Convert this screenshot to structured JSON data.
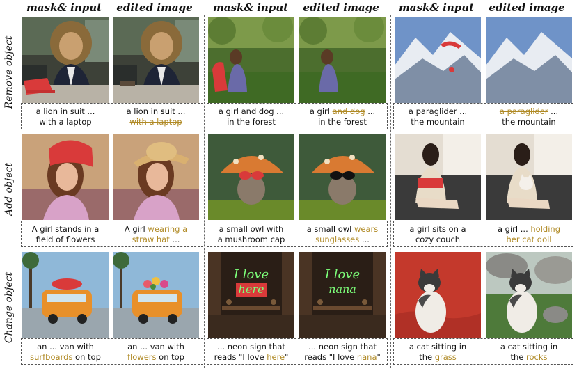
{
  "columns": [
    "mask& input",
    "edited image",
    "mask& input",
    "edited image",
    "mask& input",
    "edited image"
  ],
  "rows": [
    {
      "label": "Remove object",
      "pairs": [
        {
          "input_caption": [
            {
              "t": "a lion in suit ..."
            },
            {
              "t": "with a laptop"
            }
          ],
          "edited_caption": [
            {
              "t": "a lion in suit ..."
            },
            {
              "t": "with a laptop",
              "s": "strike"
            }
          ]
        },
        {
          "input_caption": [
            {
              "t": "a girl and dog ..."
            },
            {
              "t": "in the forest"
            }
          ],
          "edited_caption": [
            {
              "t": "a girl "
            },
            {
              "t": "and dog",
              "s": "strike"
            },
            {
              "t": " ..."
            },
            {
              "t": "in the forest"
            }
          ]
        },
        {
          "input_caption": [
            {
              "t": "a paraglider ..."
            },
            {
              "t": "the mountain"
            }
          ],
          "edited_caption": [
            {
              "t": "a paraglider",
              "s": "strike"
            },
            {
              "t": " ..."
            },
            {
              "t": "the mountain"
            }
          ]
        }
      ]
    },
    {
      "label": "Add object",
      "pairs": [
        {
          "input_caption": [
            {
              "t": "A girl stands in a"
            },
            {
              "t": "field of flowers"
            }
          ],
          "edited_caption": [
            {
              "t": "A girl "
            },
            {
              "t": "wearing a",
              "s": "hl"
            },
            {
              "t": "straw hat",
              "s": "hl"
            },
            {
              "t": " ..."
            }
          ]
        },
        {
          "input_caption": [
            {
              "t": "a small owl with"
            },
            {
              "t": "a mushroom cap"
            }
          ],
          "edited_caption": [
            {
              "t": "a small owl "
            },
            {
              "t": "wears",
              "s": "hl"
            },
            {
              "t": "sunglasses",
              "s": "hl"
            },
            {
              "t": " ..."
            }
          ]
        },
        {
          "input_caption": [
            {
              "t": "a girl sits on a"
            },
            {
              "t": "cozy couch"
            }
          ],
          "edited_caption": [
            {
              "t": "a girl ... "
            },
            {
              "t": "holding",
              "s": "hl"
            },
            {
              "t": "her cat doll",
              "s": "hl"
            }
          ]
        }
      ]
    },
    {
      "label": "Change object",
      "pairs": [
        {
          "input_caption": [
            {
              "t": "an ... van with"
            },
            {
              "t": "surfboards",
              "s": "hl"
            },
            {
              "t": " on top"
            }
          ],
          "edited_caption": [
            {
              "t": "an ... van with"
            },
            {
              "t": "flowers",
              "s": "hl"
            },
            {
              "t": " on top"
            }
          ]
        },
        {
          "input_caption": [
            {
              "t": "... neon sign that"
            },
            {
              "t": "reads \"I love "
            },
            {
              "t": "here",
              "s": "hl"
            },
            {
              "t": "\""
            }
          ],
          "edited_caption": [
            {
              "t": "... neon sign that"
            },
            {
              "t": "reads \"I love "
            },
            {
              "t": "nana",
              "s": "hl"
            },
            {
              "t": "\""
            }
          ]
        },
        {
          "input_caption": [
            {
              "t": "a cat sitting in"
            },
            {
              "t": "the "
            },
            {
              "t": "grass",
              "s": "hl"
            }
          ],
          "edited_caption": [
            {
              "t": "a cat sitting in"
            },
            {
              "t": "the "
            },
            {
              "t": "rocks",
              "s": "hl"
            }
          ]
        }
      ]
    }
  ],
  "neon_text": {
    "input_line1": "I love",
    "input_line2": "here",
    "edited_line1": "I love",
    "edited_line2": "nana"
  },
  "colors": {
    "highlight": "#b08a25",
    "mask_red": "#d93a3a",
    "neon": "#7dff7a"
  }
}
